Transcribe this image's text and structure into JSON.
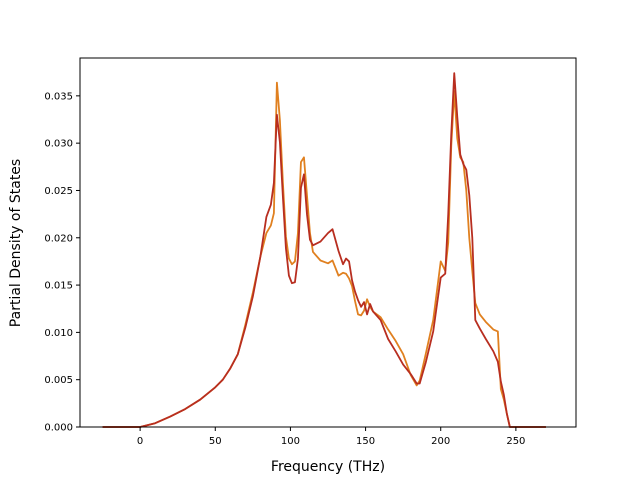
{
  "chart_data": {
    "type": "line",
    "title": "",
    "xlabel": "Frequency (THz)",
    "ylabel": "Partial Density of States",
    "xlim": [
      -40,
      290
    ],
    "ylim": [
      0,
      0.039
    ],
    "xticks": [
      0,
      50,
      100,
      150,
      200,
      250
    ],
    "yticks": [
      0,
      0.005,
      0.01,
      0.015,
      0.02,
      0.025,
      0.03,
      0.035
    ],
    "ytick_labels": [
      "0.000",
      "0.005",
      "0.010",
      "0.015",
      "0.020",
      "0.025",
      "0.030",
      "0.035"
    ],
    "grid": false,
    "legend": "none",
    "series": [
      {
        "color": "#e08020",
        "x": [
          -25,
          0,
          10,
          20,
          30,
          40,
          50,
          55,
          60,
          65,
          70,
          75,
          80,
          84,
          87,
          89,
          91,
          93,
          95,
          97,
          99,
          101,
          103,
          105,
          107,
          109,
          111,
          113,
          115,
          120,
          125,
          128,
          132,
          135,
          137,
          139,
          141,
          143,
          145,
          147,
          149,
          151,
          153,
          155,
          160,
          165,
          170,
          175,
          180,
          184,
          186,
          190,
          195,
          200,
          203,
          205,
          207,
          209,
          211,
          213,
          215,
          217,
          219,
          221,
          223,
          226,
          230,
          235,
          238,
          240,
          242,
          244,
          246,
          250,
          270
        ],
        "y": [
          0,
          0,
          0.0004,
          0.0011,
          0.0019,
          0.0029,
          0.0042,
          0.005,
          0.0062,
          0.0077,
          0.0108,
          0.0142,
          0.018,
          0.0205,
          0.0213,
          0.0226,
          0.0364,
          0.0324,
          0.0258,
          0.0201,
          0.0178,
          0.0172,
          0.0175,
          0.0205,
          0.028,
          0.0285,
          0.0245,
          0.0205,
          0.0185,
          0.0176,
          0.0173,
          0.0176,
          0.016,
          0.0163,
          0.0162,
          0.0157,
          0.0149,
          0.0133,
          0.0119,
          0.0118,
          0.0123,
          0.0135,
          0.0127,
          0.0122,
          0.0116,
          0.0103,
          0.0091,
          0.0077,
          0.0055,
          0.0044,
          0.0049,
          0.0077,
          0.0113,
          0.0175,
          0.0165,
          0.0195,
          0.0297,
          0.0355,
          0.0305,
          0.0285,
          0.028,
          0.025,
          0.02,
          0.0165,
          0.0131,
          0.0119,
          0.0111,
          0.0103,
          0.0101,
          0.004,
          0.0029,
          0.0014,
          0,
          0,
          0
        ]
      },
      {
        "color": "#b82e20",
        "x": [
          -25,
          0,
          10,
          20,
          30,
          40,
          50,
          55,
          60,
          65,
          70,
          75,
          80,
          84,
          87,
          89,
          91,
          93,
          95,
          97,
          99,
          101,
          103,
          105,
          107,
          109,
          111,
          113,
          115,
          120,
          125,
          128,
          132,
          135,
          137,
          139,
          141,
          143,
          145,
          147,
          149,
          151,
          153,
          155,
          160,
          165,
          170,
          175,
          180,
          184,
          186,
          190,
          195,
          200,
          203,
          205,
          207,
          209,
          211,
          213,
          215,
          217,
          219,
          221,
          223,
          226,
          230,
          235,
          238,
          240,
          242,
          244,
          246,
          250,
          270
        ],
        "y": [
          0,
          0,
          0.0004,
          0.0011,
          0.0019,
          0.0029,
          0.0042,
          0.005,
          0.0062,
          0.0077,
          0.0105,
          0.0138,
          0.018,
          0.0222,
          0.0235,
          0.0258,
          0.033,
          0.0301,
          0.0243,
          0.0189,
          0.016,
          0.0152,
          0.0153,
          0.0178,
          0.0253,
          0.0267,
          0.0225,
          0.0198,
          0.0192,
          0.0196,
          0.0205,
          0.0209,
          0.0186,
          0.0172,
          0.0178,
          0.0175,
          0.0155,
          0.0143,
          0.0134,
          0.0127,
          0.0132,
          0.0119,
          0.013,
          0.0122,
          0.0113,
          0.0093,
          0.008,
          0.0066,
          0.0056,
          0.0046,
          0.0046,
          0.0068,
          0.0101,
          0.0158,
          0.0162,
          0.0225,
          0.0309,
          0.0374,
          0.0328,
          0.0288,
          0.0278,
          0.0272,
          0.0245,
          0.02,
          0.0113,
          0.0104,
          0.0093,
          0.008,
          0.0069,
          0.0048,
          0.0034,
          0.0014,
          0,
          0,
          0
        ]
      }
    ]
  }
}
